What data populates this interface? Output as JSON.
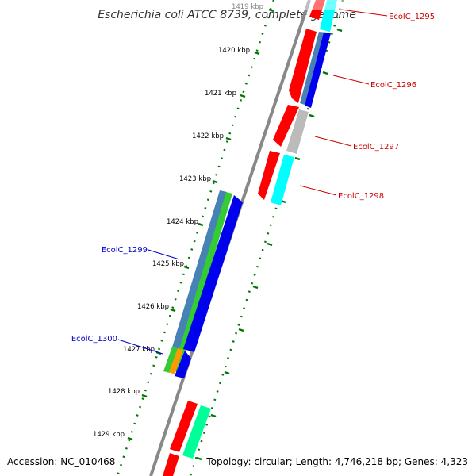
{
  "map": {
    "title": "Escherichia coli ATCC 8739, complete genome",
    "footer_left": "Accession: NC_010468",
    "footer_right": "Topology: circular; Length: 4,746,218 bp; Genes: 4,323"
  },
  "ticks": [
    {
      "label": "1419 kbp"
    },
    {
      "label": "1420 kbp"
    },
    {
      "label": "1421 kbp"
    },
    {
      "label": "1422 kbp"
    },
    {
      "label": "1423 kbp"
    },
    {
      "label": "1424 kbp"
    },
    {
      "label": "1425 kbp"
    },
    {
      "label": "1426 kbp"
    },
    {
      "label": "1427 kbp"
    },
    {
      "label": "1428 kbp"
    },
    {
      "label": "1429 kbp"
    }
  ],
  "gene_labels": [
    {
      "text": "EcolC_1295",
      "color": "#cc0000"
    },
    {
      "text": "EcolC_1296",
      "color": "#cc0000"
    },
    {
      "text": "EcolC_1297",
      "color": "#cc0000"
    },
    {
      "text": "EcolC_1298",
      "color": "#cc0000"
    },
    {
      "text": "EcolC_1299",
      "color": "#0000cc"
    },
    {
      "text": "EcolC_1300",
      "color": "#0000cc"
    }
  ],
  "colors": {
    "backbone": "#888888",
    "ruler_dots": "#007700",
    "cds": "#ff0000",
    "gc_skew_pos": "#00ffff",
    "gc_skew_neg": "#0000ff",
    "rrna": "#aaaaaa",
    "trna": "#00ff99",
    "steel": "#4682b4",
    "green": "#33cc33",
    "orange": "#ff9900",
    "blue": "#0000ee"
  }
}
